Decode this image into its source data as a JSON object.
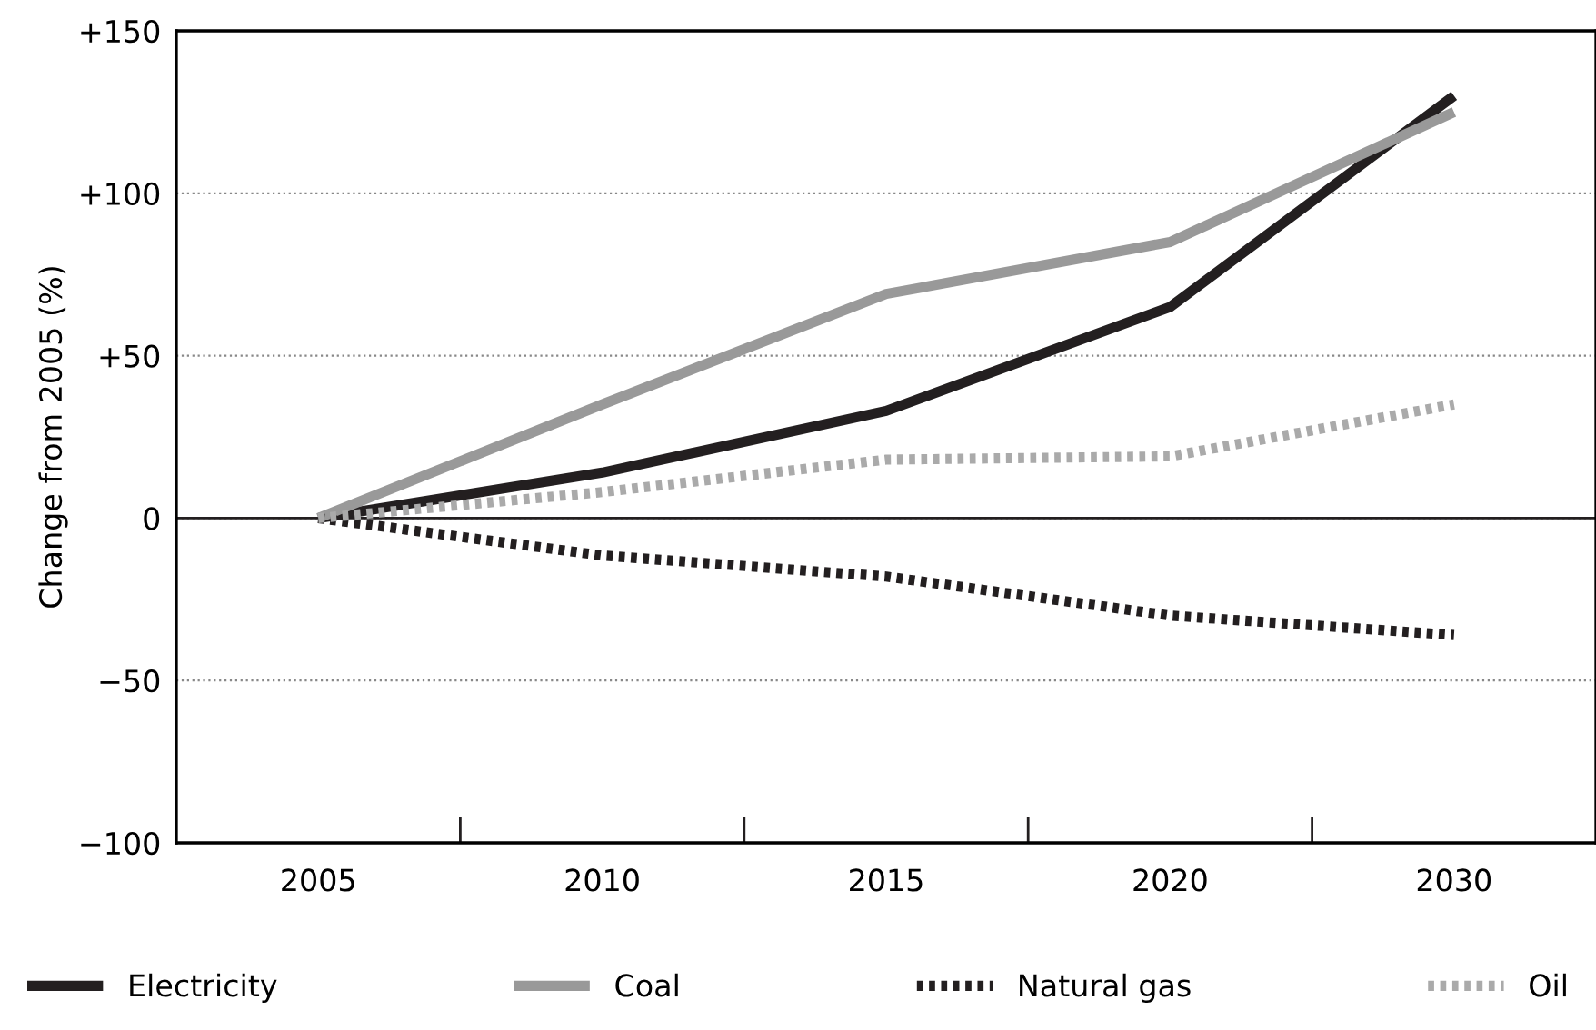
{
  "chart_data": {
    "type": "line",
    "ylabel": "Change from 2005 (%)",
    "categories": [
      "2005",
      "2010",
      "2015",
      "2020",
      "2030"
    ],
    "series": [
      {
        "name": "Electricity",
        "color": "#231f20",
        "line_style": "solid",
        "values": [
          0,
          14,
          33,
          65,
          130
        ]
      },
      {
        "name": "Coal",
        "color": "#999999",
        "line_style": "solid",
        "values": [
          0,
          35,
          69,
          85,
          125
        ]
      },
      {
        "name": "Natural gas",
        "color": "#231f20",
        "line_style": "dotted",
        "values": [
          0,
          -11.5,
          -18,
          -30,
          -36
        ]
      },
      {
        "name": "Oil",
        "color": "#aaaaaa",
        "line_style": "dotted",
        "values": [
          0,
          8,
          18,
          19,
          35
        ]
      }
    ],
    "ylim": [
      -100,
      150
    ],
    "yticks": [
      {
        "value": -100,
        "label": "−100"
      },
      {
        "value": -50,
        "label": "−50"
      },
      0,
      {
        "value": 50,
        "label": "+50"
      },
      {
        "value": 100,
        "label": "+100"
      },
      {
        "value": 150,
        "label": "+150"
      }
    ],
    "grid": "y",
    "ref_lines": [
      {
        "axis": "y",
        "value": 0,
        "color": "#231f20",
        "line_style": "solid"
      }
    ],
    "legend": "bottom",
    "marker": "none"
  }
}
